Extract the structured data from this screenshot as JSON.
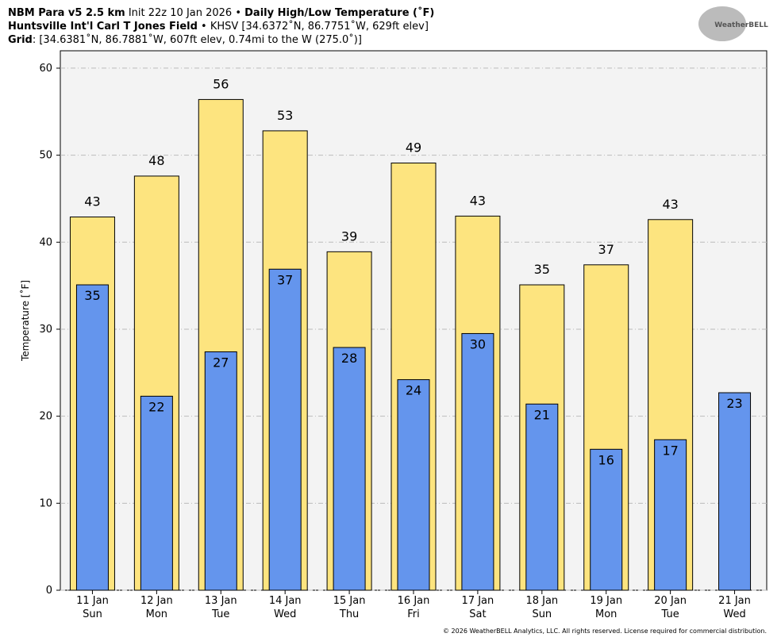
{
  "chart_data": {
    "type": "bar",
    "title_lines": [
      [
        "NBM Para v5 2.5 km",
        " Init 22z 10 Jan 2026 • ",
        "Daily High/Low Temperature (˚F)"
      ],
      [
        "Huntsville Int'l Carl T Jones Field",
        " • KHSV [34.6372˚N, 86.7751˚W, 629ft elev]"
      ],
      [
        "Grid",
        ": [34.6381˚N, 86.7881˚W, 607ft elev, 0.74mi to the W (275.0˚)]"
      ]
    ],
    "logo": "WeatherBELL",
    "ylabel": "Temperature [˚F]",
    "categories": [
      "11 Jan",
      "12 Jan",
      "13 Jan",
      "14 Jan",
      "15 Jan",
      "16 Jan",
      "17 Jan",
      "18 Jan",
      "19 Jan",
      "20 Jan",
      "21 Jan"
    ],
    "weekdays": [
      "Sun",
      "Mon",
      "Tue",
      "Wed",
      "Thu",
      "Fri",
      "Sat",
      "Sun",
      "Mon",
      "Tue",
      "Wed"
    ],
    "series": [
      {
        "color": "#fde47f",
        "values": [
          42.9,
          47.6,
          56.4,
          52.8,
          38.9,
          49.1,
          43.0,
          35.1,
          37.4,
          42.6,
          null
        ],
        "value_labels": [
          "43",
          "48",
          "56",
          "53",
          "39",
          "49",
          "43",
          "35",
          "37",
          "43",
          null
        ]
      },
      {
        "color": "#6495ed",
        "values": [
          35.1,
          22.3,
          27.4,
          36.9,
          27.9,
          24.2,
          29.5,
          21.4,
          16.2,
          17.3,
          22.7
        ],
        "value_labels": [
          "35",
          "22",
          "27",
          "37",
          "28",
          "24",
          "30",
          "21",
          "16",
          "17",
          "23"
        ]
      }
    ],
    "ylim": [
      0,
      62
    ],
    "yticks": [
      0,
      10,
      20,
      30,
      40,
      50,
      60
    ],
    "grid": true,
    "footer": "© 2026 WeatherBELL Analytics, LLC. All rights reserved. License required for commercial distribution."
  }
}
